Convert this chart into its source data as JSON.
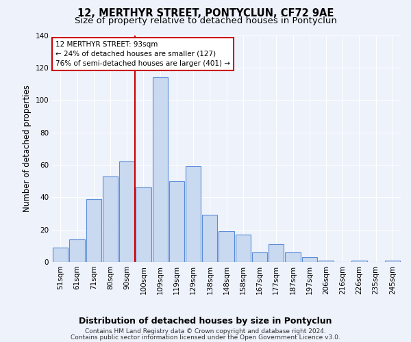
{
  "title": "12, MERTHYR STREET, PONTYCLUN, CF72 9AE",
  "subtitle": "Size of property relative to detached houses in Pontyclun",
  "xlabel": "Distribution of detached houses by size in Pontyclun",
  "ylabel": "Number of detached properties",
  "categories": [
    "51sqm",
    "61sqm",
    "71sqm",
    "80sqm",
    "90sqm",
    "100sqm",
    "109sqm",
    "119sqm",
    "129sqm",
    "138sqm",
    "148sqm",
    "158sqm",
    "167sqm",
    "177sqm",
    "187sqm",
    "197sqm",
    "206sqm",
    "216sqm",
    "226sqm",
    "235sqm",
    "245sqm"
  ],
  "values": [
    9,
    14,
    39,
    53,
    62,
    46,
    114,
    50,
    59,
    29,
    19,
    17,
    6,
    11,
    6,
    3,
    1,
    0,
    1,
    0,
    1
  ],
  "bar_color": "#c9d9f0",
  "bar_edge_color": "#5b8dd9",
  "vline_color": "#cc0000",
  "annotation_text": "12 MERTHYR STREET: 93sqm\n← 24% of detached houses are smaller (127)\n76% of semi-detached houses are larger (401) →",
  "annotation_box_color": "white",
  "annotation_box_edge": "#cc0000",
  "ylim": [
    0,
    140
  ],
  "yticks": [
    0,
    20,
    40,
    60,
    80,
    100,
    120,
    140
  ],
  "footer_line1": "Contains HM Land Registry data © Crown copyright and database right 2024.",
  "footer_line2": "Contains public sector information licensed under the Open Government Licence v3.0.",
  "bg_color": "#eef2fb",
  "grid_color": "#ffffff",
  "title_fontsize": 10.5,
  "subtitle_fontsize": 9.5,
  "xlabel_fontsize": 9,
  "ylabel_fontsize": 8.5,
  "tick_fontsize": 7.5,
  "annot_fontsize": 7.5,
  "footer_fontsize": 6.5
}
